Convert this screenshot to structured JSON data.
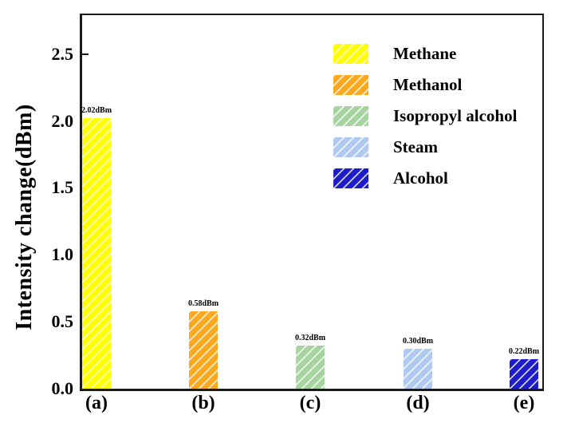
{
  "chart_data": {
    "type": "bar",
    "title": "",
    "xlabel": "",
    "ylabel": "Intensity change(dBm)",
    "categories": [
      "(a)",
      "(b)",
      "(c)",
      "(d)",
      "(e)"
    ],
    "values": [
      2.02,
      0.58,
      0.32,
      0.3,
      0.22
    ],
    "bar_labels": [
      "2.02dBm",
      "0.58dBm",
      "0.32dBm",
      "0.30dBm",
      "0.22dBm"
    ],
    "series_names": [
      "Methane",
      "Methanol",
      "Isopropyl alcohol",
      "Steam",
      "Alcohol"
    ],
    "colors": [
      "#ffff00",
      "#fba81e",
      "#a6d3a0",
      "#afc9f0",
      "#1c1ccb"
    ],
    "hatch": "/",
    "hatch_line_color": "rgba(255,255,255,0.8)",
    "ylim": [
      0,
      2.79
    ],
    "yticks": [
      "0.0",
      "0.5",
      "1.0",
      "1.5",
      "2.0",
      "2.5"
    ],
    "grid": false,
    "legend_position": "upper right",
    "axis_color": "#1a1a1a"
  }
}
